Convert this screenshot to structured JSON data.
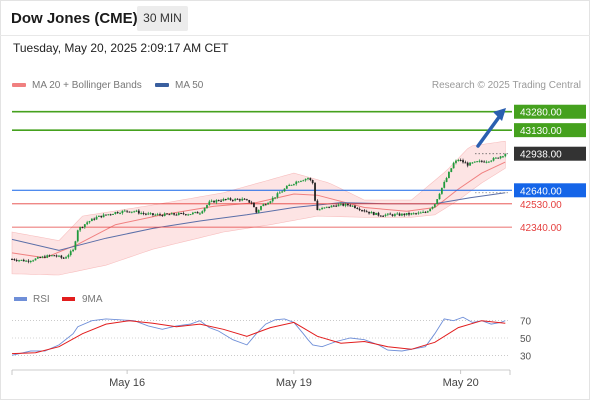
{
  "header": {
    "title": "Dow Jones (CME)",
    "timeframe_label": "30 MIN"
  },
  "datetime": "Tuesday, May 20, 2025 2:09:17 AM CET",
  "legend": {
    "bollinger_label": "MA 20 + Bollinger Bands",
    "ma50_label": "MA 50",
    "credit": "Research © 2025 Trading Central"
  },
  "colors": {
    "up_candle": "#1f9a3c",
    "down_candle": "#222222",
    "resistance": "#45a11e",
    "pivot": "#1565e8",
    "support": "#e5403f",
    "bollinger_fill": "#fde2e2",
    "ma20": "#f08080",
    "ma50": "#5b6fa8",
    "current_price": "#333333",
    "rsi": "#6f8fd8",
    "rsi_ma": "#e21d1d",
    "arrow": "#2a5fb0"
  },
  "chart_data": [
    {
      "type": "candlestick",
      "ylim": [
        41950,
        43400
      ],
      "x_labels": [
        "May 16",
        "May 19",
        "May 20"
      ],
      "levels": [
        {
          "value": 43280.0,
          "label": "43280.00",
          "kind": "resistance"
        },
        {
          "value": 43130.0,
          "label": "43130.00",
          "kind": "resistance"
        },
        {
          "value": 42938.0,
          "label": "42938.00",
          "kind": "current"
        },
        {
          "value": 42640.0,
          "label": "42640.00",
          "kind": "pivot"
        },
        {
          "value": 42530.0,
          "label": "42530.00",
          "kind": "support"
        },
        {
          "value": 42340.0,
          "label": "42340.00",
          "kind": "support"
        }
      ],
      "close_path": [
        [
          0,
          42080
        ],
        [
          6,
          42065
        ],
        [
          10,
          42080
        ],
        [
          14,
          42100
        ],
        [
          18,
          42110
        ],
        [
          22,
          42085
        ],
        [
          26,
          42150
        ],
        [
          28,
          42320
        ],
        [
          32,
          42380
        ],
        [
          36,
          42420
        ],
        [
          40,
          42440
        ],
        [
          44,
          42460
        ],
        [
          48,
          42470
        ],
        [
          52,
          42470
        ],
        [
          56,
          42450
        ],
        [
          60,
          42440
        ],
        [
          64,
          42440
        ],
        [
          70,
          42445
        ],
        [
          76,
          42450
        ],
        [
          80,
          42460
        ],
        [
          84,
          42540
        ],
        [
          88,
          42560
        ],
        [
          92,
          42565
        ],
        [
          98,
          42565
        ],
        [
          102,
          42540
        ],
        [
          104,
          42460
        ],
        [
          106,
          42510
        ],
        [
          110,
          42560
        ],
        [
          114,
          42620
        ],
        [
          118,
          42680
        ],
        [
          122,
          42720
        ],
        [
          126,
          42740
        ],
        [
          128,
          42700
        ],
        [
          129,
          42560
        ],
        [
          130,
          42480
        ],
        [
          134,
          42500
        ],
        [
          138,
          42520
        ],
        [
          144,
          42520
        ],
        [
          148,
          42490
        ],
        [
          152,
          42460
        ],
        [
          156,
          42440
        ],
        [
          160,
          42440
        ],
        [
          164,
          42440
        ],
        [
          168,
          42445
        ],
        [
          172,
          42450
        ],
        [
          176,
          42460
        ],
        [
          180,
          42530
        ],
        [
          182,
          42620
        ],
        [
          184,
          42700
        ],
        [
          186,
          42780
        ],
        [
          188,
          42860
        ],
        [
          190,
          42890
        ],
        [
          194,
          42850
        ],
        [
          198,
          42870
        ],
        [
          202,
          42880
        ],
        [
          206,
          42900
        ],
        [
          210,
          42938
        ]
      ],
      "bollinger_bands": {
        "upper": [
          [
            0,
            42300
          ],
          [
            20,
            42230
          ],
          [
            30,
            42430
          ],
          [
            60,
            42520
          ],
          [
            90,
            42620
          ],
          [
            120,
            42780
          ],
          [
            135,
            42700
          ],
          [
            150,
            42560
          ],
          [
            170,
            42560
          ],
          [
            185,
            42800
          ],
          [
            195,
            43000
          ],
          [
            210,
            43040
          ]
        ],
        "lower": [
          [
            0,
            41960
          ],
          [
            20,
            41950
          ],
          [
            40,
            42030
          ],
          [
            60,
            42160
          ],
          [
            90,
            42300
          ],
          [
            110,
            42360
          ],
          [
            130,
            42430
          ],
          [
            150,
            42420
          ],
          [
            170,
            42420
          ],
          [
            180,
            42440
          ],
          [
            190,
            42560
          ],
          [
            200,
            42700
          ],
          [
            210,
            42820
          ]
        ]
      },
      "ma20": [
        [
          0,
          42130
        ],
        [
          14,
          42090
        ],
        [
          28,
          42200
        ],
        [
          44,
          42360
        ],
        [
          64,
          42440
        ],
        [
          86,
          42510
        ],
        [
          104,
          42540
        ],
        [
          120,
          42610
        ],
        [
          130,
          42600
        ],
        [
          150,
          42500
        ],
        [
          168,
          42470
        ],
        [
          180,
          42500
        ],
        [
          190,
          42650
        ],
        [
          200,
          42780
        ],
        [
          210,
          42870
        ]
      ],
      "ma50": [
        [
          0,
          42240
        ],
        [
          20,
          42150
        ],
        [
          40,
          42250
        ],
        [
          60,
          42330
        ],
        [
          80,
          42390
        ],
        [
          100,
          42440
        ],
        [
          120,
          42500
        ],
        [
          140,
          42540
        ],
        [
          160,
          42530
        ],
        [
          180,
          42530
        ],
        [
          195,
          42580
        ],
        [
          210,
          42620
        ]
      ],
      "series": [
        {
          "name": "MA 20 + Bollinger Bands"
        },
        {
          "name": "MA 50"
        }
      ]
    },
    {
      "type": "line",
      "ylim": [
        20,
        80
      ],
      "y_ticks": [
        70,
        50,
        30
      ],
      "series": [
        {
          "name": "RSI",
          "values": [
            [
              0,
              30
            ],
            [
              8,
              35
            ],
            [
              14,
              35
            ],
            [
              20,
              42
            ],
            [
              26,
              55
            ],
            [
              28,
              63
            ],
            [
              34,
              70
            ],
            [
              40,
              72
            ],
            [
              46,
              71
            ],
            [
              52,
              70
            ],
            [
              58,
              64
            ],
            [
              64,
              60
            ],
            [
              70,
              64
            ],
            [
              76,
              66
            ],
            [
              80,
              70
            ],
            [
              84,
              62
            ],
            [
              88,
              58
            ],
            [
              94,
              48
            ],
            [
              100,
              42
            ],
            [
              104,
              55
            ],
            [
              108,
              66
            ],
            [
              112,
              71
            ],
            [
              116,
              72
            ],
            [
              120,
              68
            ],
            [
              124,
              55
            ],
            [
              126,
              48
            ],
            [
              128,
              42
            ],
            [
              132,
              40
            ],
            [
              138,
              46
            ],
            [
              144,
              50
            ],
            [
              150,
              48
            ],
            [
              156,
              42
            ],
            [
              160,
              36
            ],
            [
              166,
              35
            ],
            [
              172,
              38
            ],
            [
              176,
              40
            ],
            [
              180,
              55
            ],
            [
              184,
              72
            ],
            [
              188,
              70
            ],
            [
              192,
              74
            ],
            [
              196,
              68
            ],
            [
              200,
              70
            ],
            [
              204,
              66
            ],
            [
              208,
              68
            ],
            [
              210,
              70
            ]
          ]
        },
        {
          "name": "9MA",
          "values": [
            [
              0,
              32
            ],
            [
              10,
              33
            ],
            [
              20,
              40
            ],
            [
              30,
              55
            ],
            [
              40,
              66
            ],
            [
              50,
              70
            ],
            [
              60,
              67
            ],
            [
              70,
              63
            ],
            [
              80,
              66
            ],
            [
              90,
              60
            ],
            [
              100,
              52
            ],
            [
              110,
              62
            ],
            [
              120,
              68
            ],
            [
              130,
              52
            ],
            [
              140,
              44
            ],
            [
              150,
              46
            ],
            [
              160,
              40
            ],
            [
              170,
              37
            ],
            [
              180,
              45
            ],
            [
              190,
              62
            ],
            [
              200,
              70
            ],
            [
              210,
              67
            ]
          ]
        }
      ]
    }
  ]
}
